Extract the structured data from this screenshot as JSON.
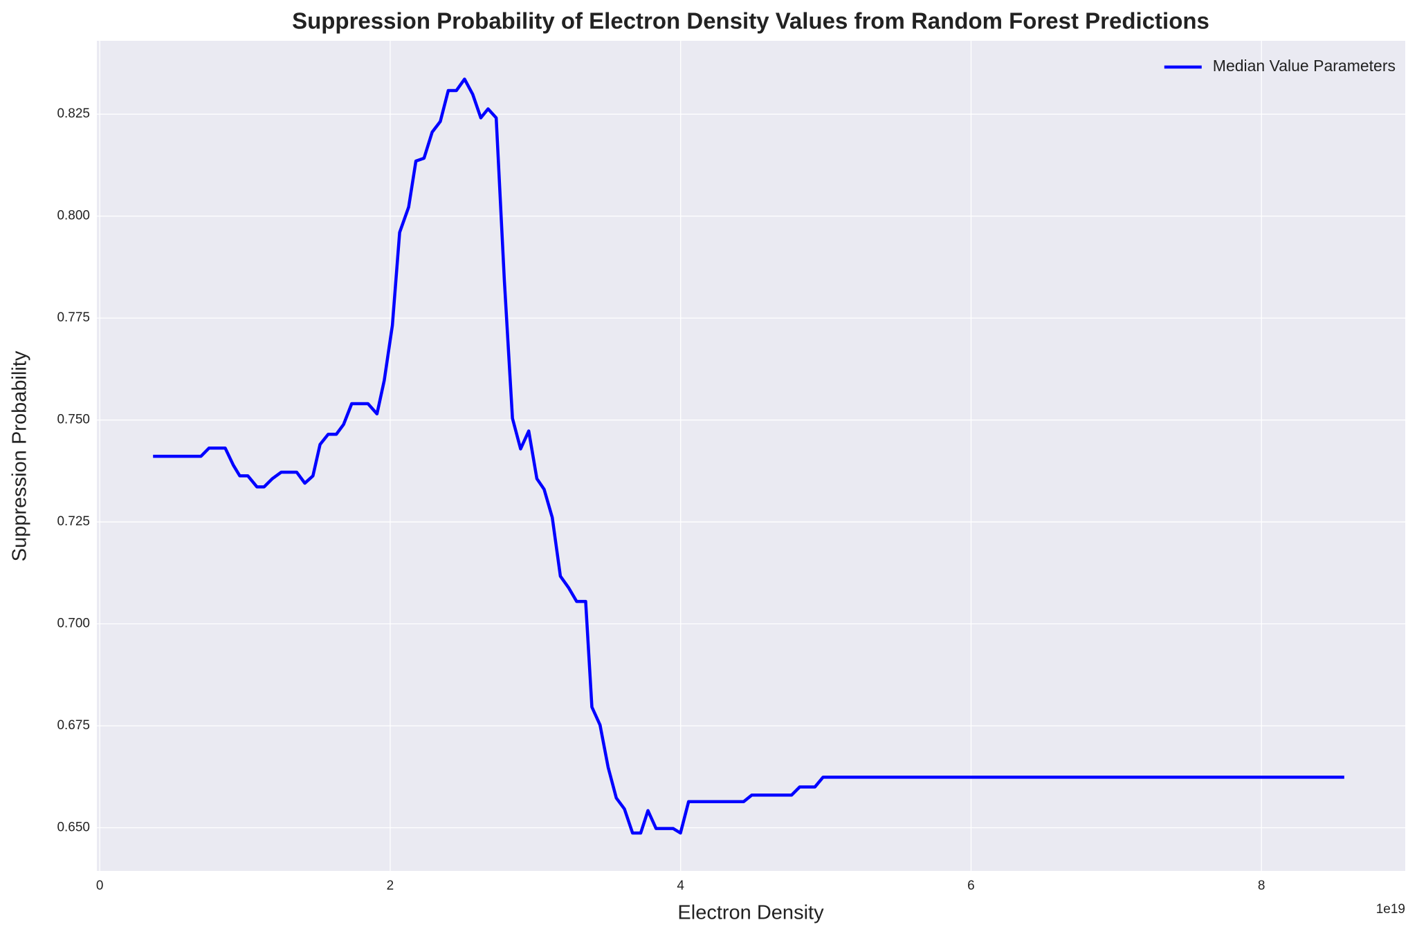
{
  "chart_data": {
    "type": "line",
    "title": "Suppression Probability of Electron Density Values from Random Forest Predictions",
    "x_label": "Electron Density",
    "y_label": "Suppression Probability",
    "x_offset_label": "1e19",
    "x": [
      0.367,
      0.697,
      0.752,
      0.864,
      0.92,
      0.964,
      1.02,
      1.082,
      1.132,
      1.188,
      1.25,
      1.356,
      1.412,
      1.468,
      1.517,
      1.573,
      1.629,
      1.679,
      1.735,
      1.847,
      1.909,
      1.959,
      2.015,
      2.065,
      2.127,
      2.177,
      2.233,
      2.289,
      2.345,
      2.4,
      2.456,
      2.512,
      2.568,
      2.624,
      2.674,
      2.73,
      2.786,
      2.842,
      2.898,
      2.954,
      3.01,
      3.06,
      3.116,
      3.172,
      3.228,
      3.284,
      3.346,
      3.389,
      3.445,
      3.501,
      3.557,
      3.613,
      3.669,
      3.725,
      3.775,
      3.831,
      3.949,
      3.999,
      4.055,
      4.434,
      4.49,
      4.764,
      4.82,
      4.925,
      4.981,
      8.57
    ],
    "series": [
      {
        "name": "Median Value Parameters",
        "color": "#0000ff",
        "values": [
          0.7411,
          0.7411,
          0.7431,
          0.7431,
          0.7389,
          0.7363,
          0.7363,
          0.7336,
          0.7336,
          0.7356,
          0.7372,
          0.7372,
          0.7345,
          0.7363,
          0.744,
          0.7465,
          0.7465,
          0.7489,
          0.754,
          0.754,
          0.7515,
          0.7597,
          0.7732,
          0.796,
          0.8022,
          0.8135,
          0.8142,
          0.8206,
          0.8232,
          0.8308,
          0.8308,
          0.8336,
          0.8299,
          0.8241,
          0.8263,
          0.8241,
          0.7843,
          0.7504,
          0.7429,
          0.7473,
          0.7356,
          0.733,
          0.7261,
          0.7117,
          0.7089,
          0.7055,
          0.7055,
          0.6796,
          0.6752,
          0.6648,
          0.6573,
          0.6546,
          0.6487,
          0.6487,
          0.6542,
          0.6498,
          0.6498,
          0.6487,
          0.6564,
          0.6564,
          0.658,
          0.658,
          0.66,
          0.66,
          0.6624,
          0.6624
        ]
      }
    ],
    "xlim": [
      -0.02,
      8.99
    ],
    "xticks": [
      0,
      2,
      4,
      6,
      8
    ],
    "ylim": [
      0.6394,
      0.843
    ],
    "yticks": [
      {
        "value": 0.65,
        "label": "0.650"
      },
      {
        "value": 0.675,
        "label": "0.675"
      },
      {
        "value": 0.7,
        "label": "0.700"
      },
      {
        "value": 0.725,
        "label": "0.725"
      },
      {
        "value": 0.75,
        "label": "0.750"
      },
      {
        "value": 0.775,
        "label": "0.775"
      },
      {
        "value": 0.8,
        "label": "0.800"
      },
      {
        "value": 0.825,
        "label": "0.825"
      }
    ],
    "grid": true,
    "legend": "upper right"
  }
}
